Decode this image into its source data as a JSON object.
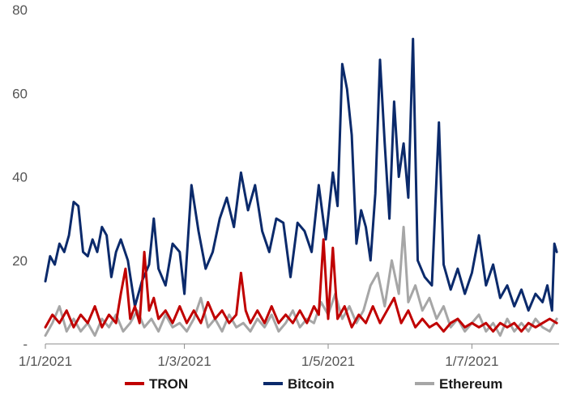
{
  "chart_data": {
    "type": "line",
    "title": "",
    "xlabel": "",
    "ylabel": "",
    "ylim": [
      0,
      80
    ],
    "y_ticks": [
      {
        "value": 0,
        "label": "-"
      },
      {
        "value": 20,
        "label": "20"
      },
      {
        "value": 40,
        "label": "40"
      },
      {
        "value": 60,
        "label": "60"
      },
      {
        "value": 80,
        "label": "80"
      }
    ],
    "x_ticks": [
      {
        "date": "2021-01-01",
        "label": "1/1/2021"
      },
      {
        "date": "2021-03-01",
        "label": "1/3/2021"
      },
      {
        "date": "2021-05-01",
        "label": "1/5/2021"
      },
      {
        "date": "2021-07-01",
        "label": "1/7/2021"
      }
    ],
    "x_range": [
      "2021-01-01",
      "2021-08-07"
    ],
    "grid": false,
    "legend_position": "bottom",
    "series": [
      {
        "name": "TRON",
        "color": "#c00000",
        "points": [
          [
            "2021-01-01",
            4
          ],
          [
            "2021-01-04",
            7
          ],
          [
            "2021-01-07",
            5
          ],
          [
            "2021-01-10",
            8
          ],
          [
            "2021-01-13",
            4
          ],
          [
            "2021-01-16",
            7
          ],
          [
            "2021-01-19",
            5
          ],
          [
            "2021-01-22",
            9
          ],
          [
            "2021-01-25",
            4
          ],
          [
            "2021-01-28",
            7
          ],
          [
            "2021-01-31",
            5
          ],
          [
            "2021-02-02",
            12
          ],
          [
            "2021-02-04",
            18
          ],
          [
            "2021-02-06",
            6
          ],
          [
            "2021-02-08",
            9
          ],
          [
            "2021-02-10",
            5
          ],
          [
            "2021-02-12",
            22
          ],
          [
            "2021-02-14",
            8
          ],
          [
            "2021-02-16",
            11
          ],
          [
            "2021-02-18",
            6
          ],
          [
            "2021-02-21",
            8
          ],
          [
            "2021-02-24",
            5
          ],
          [
            "2021-02-27",
            9
          ],
          [
            "2021-03-02",
            5
          ],
          [
            "2021-03-05",
            8
          ],
          [
            "2021-03-08",
            5
          ],
          [
            "2021-03-11",
            10
          ],
          [
            "2021-03-14",
            6
          ],
          [
            "2021-03-17",
            8
          ],
          [
            "2021-03-20",
            5
          ],
          [
            "2021-03-23",
            7
          ],
          [
            "2021-03-25",
            17
          ],
          [
            "2021-03-27",
            8
          ],
          [
            "2021-03-29",
            5
          ],
          [
            "2021-04-01",
            8
          ],
          [
            "2021-04-04",
            5
          ],
          [
            "2021-04-07",
            9
          ],
          [
            "2021-04-10",
            5
          ],
          [
            "2021-04-13",
            7
          ],
          [
            "2021-04-16",
            5
          ],
          [
            "2021-04-19",
            8
          ],
          [
            "2021-04-22",
            5
          ],
          [
            "2021-04-25",
            9
          ],
          [
            "2021-04-27",
            7
          ],
          [
            "2021-04-29",
            25
          ],
          [
            "2021-05-01",
            6
          ],
          [
            "2021-05-03",
            23
          ],
          [
            "2021-05-05",
            6
          ],
          [
            "2021-05-08",
            9
          ],
          [
            "2021-05-11",
            4
          ],
          [
            "2021-05-14",
            7
          ],
          [
            "2021-05-17",
            5
          ],
          [
            "2021-05-20",
            9
          ],
          [
            "2021-05-23",
            5
          ],
          [
            "2021-05-26",
            8
          ],
          [
            "2021-05-29",
            11
          ],
          [
            "2021-06-01",
            5
          ],
          [
            "2021-06-04",
            8
          ],
          [
            "2021-06-07",
            4
          ],
          [
            "2021-06-10",
            6
          ],
          [
            "2021-06-13",
            4
          ],
          [
            "2021-06-16",
            5
          ],
          [
            "2021-06-19",
            3
          ],
          [
            "2021-06-22",
            5
          ],
          [
            "2021-06-25",
            6
          ],
          [
            "2021-06-28",
            4
          ],
          [
            "2021-07-01",
            5
          ],
          [
            "2021-07-04",
            4
          ],
          [
            "2021-07-07",
            5
          ],
          [
            "2021-07-10",
            3
          ],
          [
            "2021-07-13",
            5
          ],
          [
            "2021-07-16",
            4
          ],
          [
            "2021-07-19",
            5
          ],
          [
            "2021-07-22",
            3
          ],
          [
            "2021-07-25",
            5
          ],
          [
            "2021-07-28",
            4
          ],
          [
            "2021-07-31",
            5
          ],
          [
            "2021-08-03",
            6
          ],
          [
            "2021-08-06",
            5
          ]
        ]
      },
      {
        "name": "Bitcoin",
        "color": "#0b2a6b",
        "points": [
          [
            "2021-01-01",
            15
          ],
          [
            "2021-01-03",
            21
          ],
          [
            "2021-01-05",
            19
          ],
          [
            "2021-01-07",
            24
          ],
          [
            "2021-01-09",
            22
          ],
          [
            "2021-01-11",
            26
          ],
          [
            "2021-01-13",
            34
          ],
          [
            "2021-01-15",
            33
          ],
          [
            "2021-01-17",
            22
          ],
          [
            "2021-01-19",
            21
          ],
          [
            "2021-01-21",
            25
          ],
          [
            "2021-01-23",
            22
          ],
          [
            "2021-01-25",
            28
          ],
          [
            "2021-01-27",
            26
          ],
          [
            "2021-01-29",
            16
          ],
          [
            "2021-01-31",
            22
          ],
          [
            "2021-02-02",
            25
          ],
          [
            "2021-02-05",
            20
          ],
          [
            "2021-02-08",
            9
          ],
          [
            "2021-02-11",
            15
          ],
          [
            "2021-02-14",
            19
          ],
          [
            "2021-02-16",
            30
          ],
          [
            "2021-02-18",
            18
          ],
          [
            "2021-02-21",
            14
          ],
          [
            "2021-02-24",
            24
          ],
          [
            "2021-02-27",
            22
          ],
          [
            "2021-03-01",
            12
          ],
          [
            "2021-03-04",
            38
          ],
          [
            "2021-03-07",
            27
          ],
          [
            "2021-03-10",
            18
          ],
          [
            "2021-03-13",
            22
          ],
          [
            "2021-03-16",
            30
          ],
          [
            "2021-03-19",
            35
          ],
          [
            "2021-03-22",
            28
          ],
          [
            "2021-03-25",
            41
          ],
          [
            "2021-03-28",
            32
          ],
          [
            "2021-03-31",
            38
          ],
          [
            "2021-04-03",
            27
          ],
          [
            "2021-04-06",
            22
          ],
          [
            "2021-04-09",
            30
          ],
          [
            "2021-04-12",
            29
          ],
          [
            "2021-04-15",
            16
          ],
          [
            "2021-04-18",
            29
          ],
          [
            "2021-04-21",
            27
          ],
          [
            "2021-04-24",
            22
          ],
          [
            "2021-04-27",
            38
          ],
          [
            "2021-04-30",
            25
          ],
          [
            "2021-05-03",
            41
          ],
          [
            "2021-05-05",
            33
          ],
          [
            "2021-05-07",
            67
          ],
          [
            "2021-05-09",
            61
          ],
          [
            "2021-05-11",
            50
          ],
          [
            "2021-05-13",
            24
          ],
          [
            "2021-05-15",
            32
          ],
          [
            "2021-05-17",
            28
          ],
          [
            "2021-05-19",
            20
          ],
          [
            "2021-05-21",
            36
          ],
          [
            "2021-05-23",
            68
          ],
          [
            "2021-05-25",
            48
          ],
          [
            "2021-05-27",
            30
          ],
          [
            "2021-05-29",
            58
          ],
          [
            "2021-05-31",
            40
          ],
          [
            "2021-06-02",
            48
          ],
          [
            "2021-06-04",
            35
          ],
          [
            "2021-06-06",
            73
          ],
          [
            "2021-06-08",
            20
          ],
          [
            "2021-06-11",
            16
          ],
          [
            "2021-06-14",
            14
          ],
          [
            "2021-06-17",
            53
          ],
          [
            "2021-06-19",
            19
          ],
          [
            "2021-06-22",
            13
          ],
          [
            "2021-06-25",
            18
          ],
          [
            "2021-06-28",
            12
          ],
          [
            "2021-07-01",
            17
          ],
          [
            "2021-07-04",
            26
          ],
          [
            "2021-07-07",
            14
          ],
          [
            "2021-07-10",
            19
          ],
          [
            "2021-07-13",
            11
          ],
          [
            "2021-07-16",
            14
          ],
          [
            "2021-07-19",
            9
          ],
          [
            "2021-07-22",
            13
          ],
          [
            "2021-07-25",
            8
          ],
          [
            "2021-07-28",
            12
          ],
          [
            "2021-07-31",
            10
          ],
          [
            "2021-08-02",
            14
          ],
          [
            "2021-08-04",
            8
          ],
          [
            "2021-08-05",
            24
          ],
          [
            "2021-08-06",
            22
          ]
        ]
      },
      {
        "name": "Ethereum",
        "color": "#a6a6a6",
        "points": [
          [
            "2021-01-01",
            2
          ],
          [
            "2021-01-04",
            5
          ],
          [
            "2021-01-07",
            9
          ],
          [
            "2021-01-10",
            3
          ],
          [
            "2021-01-13",
            6
          ],
          [
            "2021-01-16",
            3
          ],
          [
            "2021-01-19",
            5
          ],
          [
            "2021-01-22",
            2
          ],
          [
            "2021-01-25",
            6
          ],
          [
            "2021-01-28",
            4
          ],
          [
            "2021-01-31",
            7
          ],
          [
            "2021-02-03",
            3
          ],
          [
            "2021-02-06",
            5
          ],
          [
            "2021-02-09",
            8
          ],
          [
            "2021-02-12",
            4
          ],
          [
            "2021-02-15",
            6
          ],
          [
            "2021-02-18",
            3
          ],
          [
            "2021-02-21",
            7
          ],
          [
            "2021-02-24",
            4
          ],
          [
            "2021-02-27",
            5
          ],
          [
            "2021-03-02",
            3
          ],
          [
            "2021-03-05",
            6
          ],
          [
            "2021-03-08",
            11
          ],
          [
            "2021-03-11",
            4
          ],
          [
            "2021-03-14",
            6
          ],
          [
            "2021-03-17",
            3
          ],
          [
            "2021-03-20",
            7
          ],
          [
            "2021-03-23",
            4
          ],
          [
            "2021-03-26",
            5
          ],
          [
            "2021-03-29",
            3
          ],
          [
            "2021-04-01",
            6
          ],
          [
            "2021-04-04",
            4
          ],
          [
            "2021-04-07",
            7
          ],
          [
            "2021-04-10",
            3
          ],
          [
            "2021-04-13",
            5
          ],
          [
            "2021-04-16",
            8
          ],
          [
            "2021-04-19",
            4
          ],
          [
            "2021-04-22",
            6
          ],
          [
            "2021-04-25",
            5
          ],
          [
            "2021-04-28",
            10
          ],
          [
            "2021-05-01",
            7
          ],
          [
            "2021-05-04",
            12
          ],
          [
            "2021-05-07",
            6
          ],
          [
            "2021-05-10",
            9
          ],
          [
            "2021-05-13",
            5
          ],
          [
            "2021-05-16",
            8
          ],
          [
            "2021-05-19",
            14
          ],
          [
            "2021-05-22",
            17
          ],
          [
            "2021-05-25",
            9
          ],
          [
            "2021-05-28",
            20
          ],
          [
            "2021-05-31",
            12
          ],
          [
            "2021-06-02",
            28
          ],
          [
            "2021-06-04",
            10
          ],
          [
            "2021-06-07",
            14
          ],
          [
            "2021-06-10",
            8
          ],
          [
            "2021-06-13",
            11
          ],
          [
            "2021-06-16",
            6
          ],
          [
            "2021-06-19",
            9
          ],
          [
            "2021-06-22",
            4
          ],
          [
            "2021-06-25",
            6
          ],
          [
            "2021-06-28",
            3
          ],
          [
            "2021-07-01",
            5
          ],
          [
            "2021-07-04",
            7
          ],
          [
            "2021-07-07",
            3
          ],
          [
            "2021-07-10",
            5
          ],
          [
            "2021-07-13",
            2
          ],
          [
            "2021-07-16",
            6
          ],
          [
            "2021-07-19",
            3
          ],
          [
            "2021-07-22",
            5
          ],
          [
            "2021-07-25",
            3
          ],
          [
            "2021-07-28",
            6
          ],
          [
            "2021-07-31",
            4
          ],
          [
            "2021-08-03",
            3
          ],
          [
            "2021-08-06",
            6
          ]
        ]
      }
    ]
  }
}
